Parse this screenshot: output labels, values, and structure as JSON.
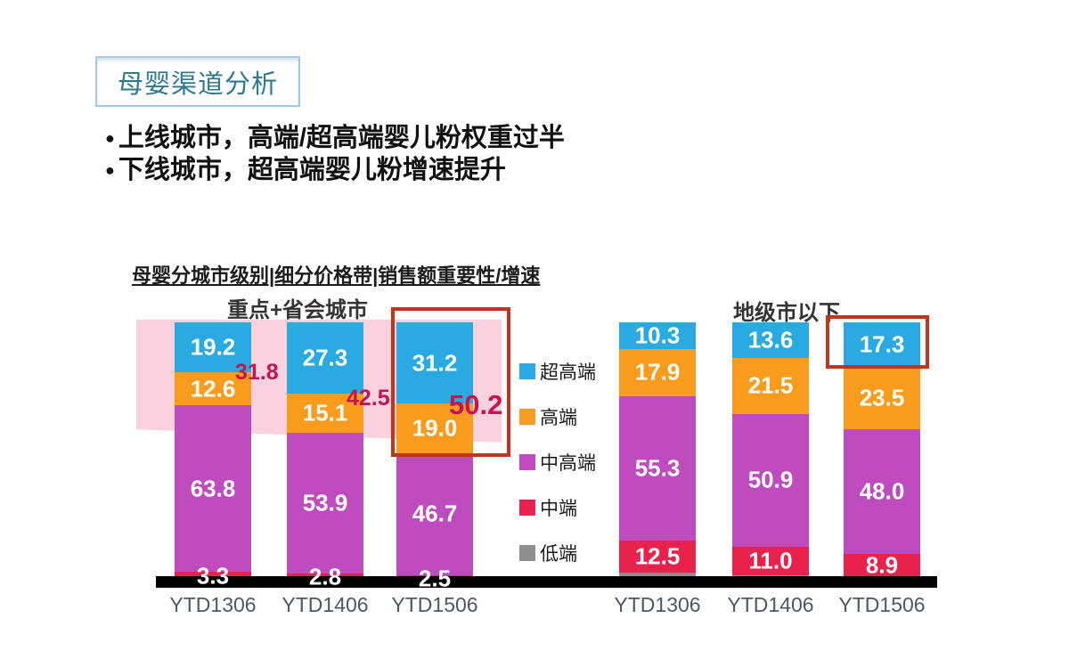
{
  "title_box": {
    "label": "母婴渠道分析"
  },
  "bullets": [
    "上线城市，高端/超高端婴儿粉权重过半",
    "下线城市，超高端婴儿粉增速提升"
  ],
  "chart_title": "母婴分城市级别|细分价格带|销售额重要性/增速",
  "chart_data": {
    "type": "bar",
    "subtype": "stacked-100-percent",
    "title": "母婴分城市级别|细分价格带|销售额重要性/增速",
    "legend_position": "middle-between-groups",
    "legend": [
      {
        "label": "超高端",
        "color": "#29abe2"
      },
      {
        "label": "高端",
        "color": "#f99b1c"
      },
      {
        "label": "中高端",
        "color": "#bf4cbf"
      },
      {
        "label": "中端",
        "color": "#e8224c"
      },
      {
        "label": "低端",
        "color": "#8e8e8e"
      }
    ],
    "groups": [
      {
        "title": "重点+省会城市",
        "categories": [
          "YTD1306",
          "YTD1406",
          "YTD1506"
        ],
        "series": [
          {
            "name": "超高端",
            "values": [
              "19.2",
              "27.3",
              "31.2"
            ]
          },
          {
            "name": "高端",
            "values": [
              "12.6",
              "15.1",
              "19.0"
            ]
          },
          {
            "name": "中高端",
            "values": [
              "63.8",
              "53.9",
              "46.7"
            ]
          },
          {
            "name": "中端",
            "values": [
              "3.3",
              "2.8",
              "2.5"
            ]
          }
        ],
        "annotations": [
          "31.8",
          "42.5",
          "50.2"
        ],
        "annotation_color": "#c9134e"
      },
      {
        "title": "地级市以下",
        "categories": [
          "YTD1306",
          "YTD1406",
          "YTD1506"
        ],
        "series": [
          {
            "name": "超高端",
            "values": [
              "10.3",
              "13.6",
              "17.3"
            ]
          },
          {
            "name": "高端",
            "values": [
              "17.9",
              "21.5",
              "23.5"
            ]
          },
          {
            "name": "中高端",
            "values": [
              "55.3",
              "50.9",
              "48.0"
            ]
          },
          {
            "name": "中端",
            "values": [
              "12.5",
              "11.0",
              "8.9"
            ]
          }
        ],
        "annotations": []
      }
    ],
    "highlight_color": "#c3341d",
    "band_color": "#fad2de"
  }
}
